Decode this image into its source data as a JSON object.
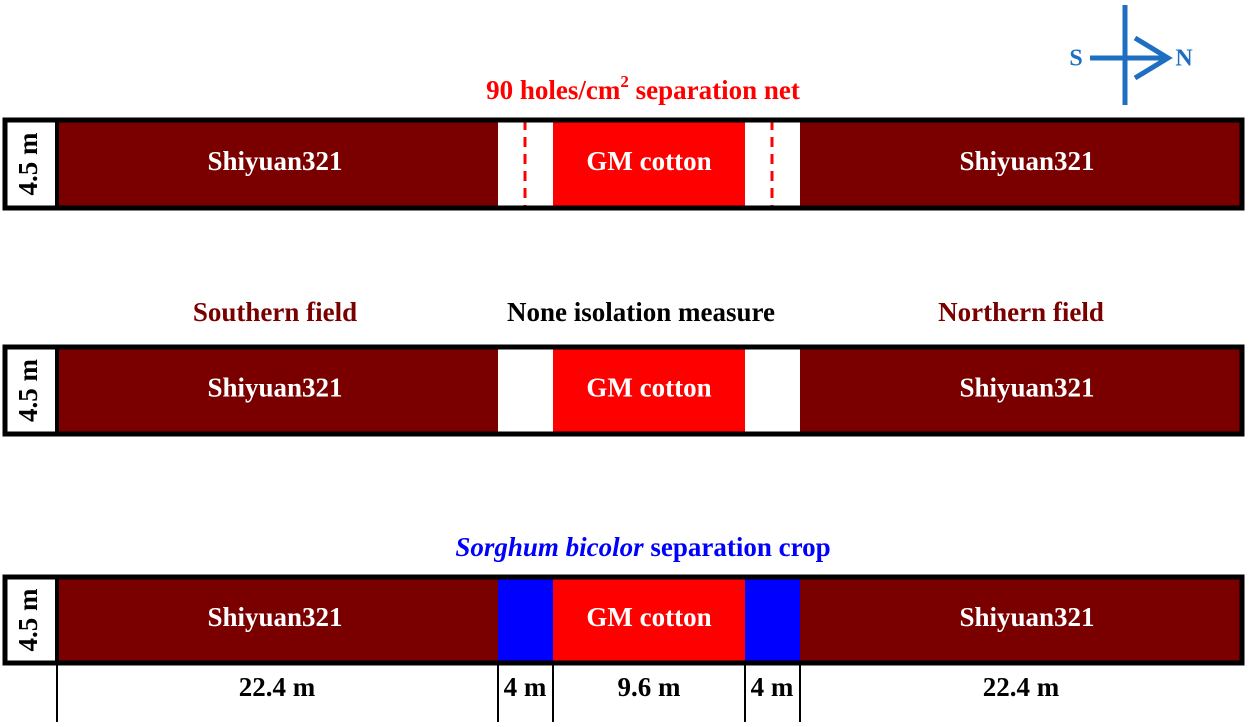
{
  "compass": {
    "south": "S",
    "north": "N"
  },
  "rows": [
    {
      "title": [
        "90 holes/cm",
        "2",
        " separation net"
      ],
      "height": "4.5 m",
      "segments": [
        "Shiyuan321",
        "GM cotton",
        "Shiyuan321"
      ]
    },
    {
      "labels": [
        "Southern field",
        "None isolation measure",
        "Northern field"
      ],
      "height": "4.5 m",
      "segments": [
        "Shiyuan321",
        "GM cotton",
        "Shiyuan321"
      ]
    },
    {
      "title": [
        "Sorghum bicolor",
        " separation crop"
      ],
      "height": "4.5 m",
      "segments": [
        "Shiyuan321",
        "GM cotton",
        "Shiyuan321"
      ]
    }
  ],
  "dimensions": [
    "22.4 m",
    "4 m",
    "9.6 m",
    "4 m",
    "22.4 m"
  ]
}
